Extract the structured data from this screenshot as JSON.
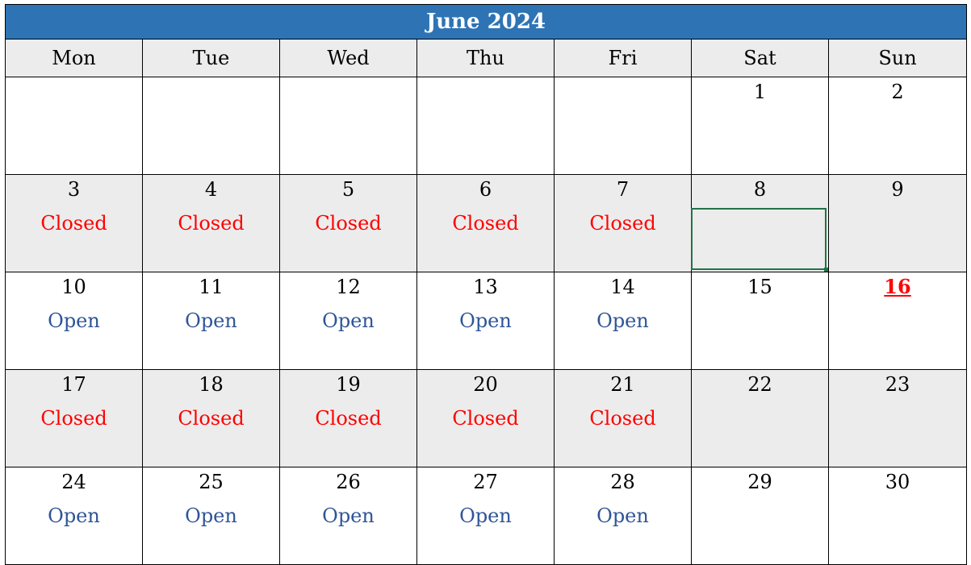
{
  "calendar": {
    "title": "June 2024",
    "weekdays": [
      "Mon",
      "Tue",
      "Wed",
      "Thu",
      "Fri",
      "Sat",
      "Sun"
    ],
    "weeks": [
      [
        {
          "day": "",
          "status": ""
        },
        {
          "day": "",
          "status": ""
        },
        {
          "day": "",
          "status": ""
        },
        {
          "day": "",
          "status": ""
        },
        {
          "day": "",
          "status": ""
        },
        {
          "day": "1",
          "status": ""
        },
        {
          "day": "2",
          "status": ""
        }
      ],
      [
        {
          "day": "3",
          "status": "Closed"
        },
        {
          "day": "4",
          "status": "Closed"
        },
        {
          "day": "5",
          "status": "Closed"
        },
        {
          "day": "6",
          "status": "Closed"
        },
        {
          "day": "7",
          "status": "Closed"
        },
        {
          "day": "8",
          "status": ""
        },
        {
          "day": "9",
          "status": ""
        }
      ],
      [
        {
          "day": "10",
          "status": "Open"
        },
        {
          "day": "11",
          "status": "Open"
        },
        {
          "day": "12",
          "status": "Open"
        },
        {
          "day": "13",
          "status": "Open"
        },
        {
          "day": "14",
          "status": "Open"
        },
        {
          "day": "15",
          "status": ""
        },
        {
          "day": "16",
          "status": "",
          "holiday": true
        }
      ],
      [
        {
          "day": "17",
          "status": "Closed"
        },
        {
          "day": "18",
          "status": "Closed"
        },
        {
          "day": "19",
          "status": "Closed"
        },
        {
          "day": "20",
          "status": "Closed"
        },
        {
          "day": "21",
          "status": "Closed"
        },
        {
          "day": "22",
          "status": ""
        },
        {
          "day": "23",
          "status": ""
        }
      ],
      [
        {
          "day": "24",
          "status": "Open"
        },
        {
          "day": "25",
          "status": "Open"
        },
        {
          "day": "26",
          "status": "Open"
        },
        {
          "day": "27",
          "status": "Open"
        },
        {
          "day": "28",
          "status": "Open"
        },
        {
          "day": "29",
          "status": ""
        },
        {
          "day": "30",
          "status": ""
        }
      ]
    ],
    "selected_cell": {
      "week": 1,
      "weekday": 5
    }
  },
  "colors": {
    "header_background": "#2e74b5",
    "header_text": "#ffffff",
    "weekday_row_background": "#ececec",
    "shaded_row_background": "#ececec",
    "closed_text": "#ff0000",
    "open_text": "#2f5597",
    "holiday_text": "#ff0000",
    "selection_border": "#217346"
  }
}
